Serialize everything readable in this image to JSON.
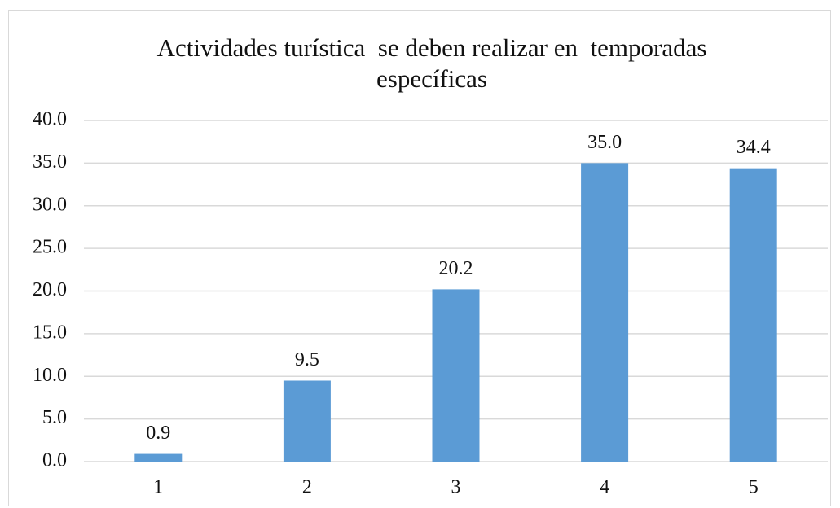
{
  "chart_data": {
    "type": "bar",
    "title": "Actividades turística  se deben realizar en  temporadas específicas",
    "categories": [
      "1",
      "2",
      "3",
      "4",
      "5"
    ],
    "values": [
      0.9,
      9.5,
      20.2,
      35,
      34.4
    ],
    "value_labels": [
      "0.9",
      "9.5",
      "20.2",
      "35.0",
      "34.4"
    ],
    "color": "#5b9bd5",
    "ylim": [
      0,
      40
    ],
    "yticks": [
      {
        "value": 0,
        "label": "0.0"
      },
      {
        "value": 5,
        "label": "5.0"
      },
      {
        "value": 10,
        "label": "10.0"
      },
      {
        "value": 15,
        "label": "15.0"
      },
      {
        "value": 20,
        "label": "20.0"
      },
      {
        "value": 25,
        "label": "25.0"
      },
      {
        "value": 30,
        "label": "30.0"
      },
      {
        "value": 35,
        "label": "35.0"
      },
      {
        "value": 40,
        "label": "40.0"
      }
    ],
    "grid": true
  }
}
